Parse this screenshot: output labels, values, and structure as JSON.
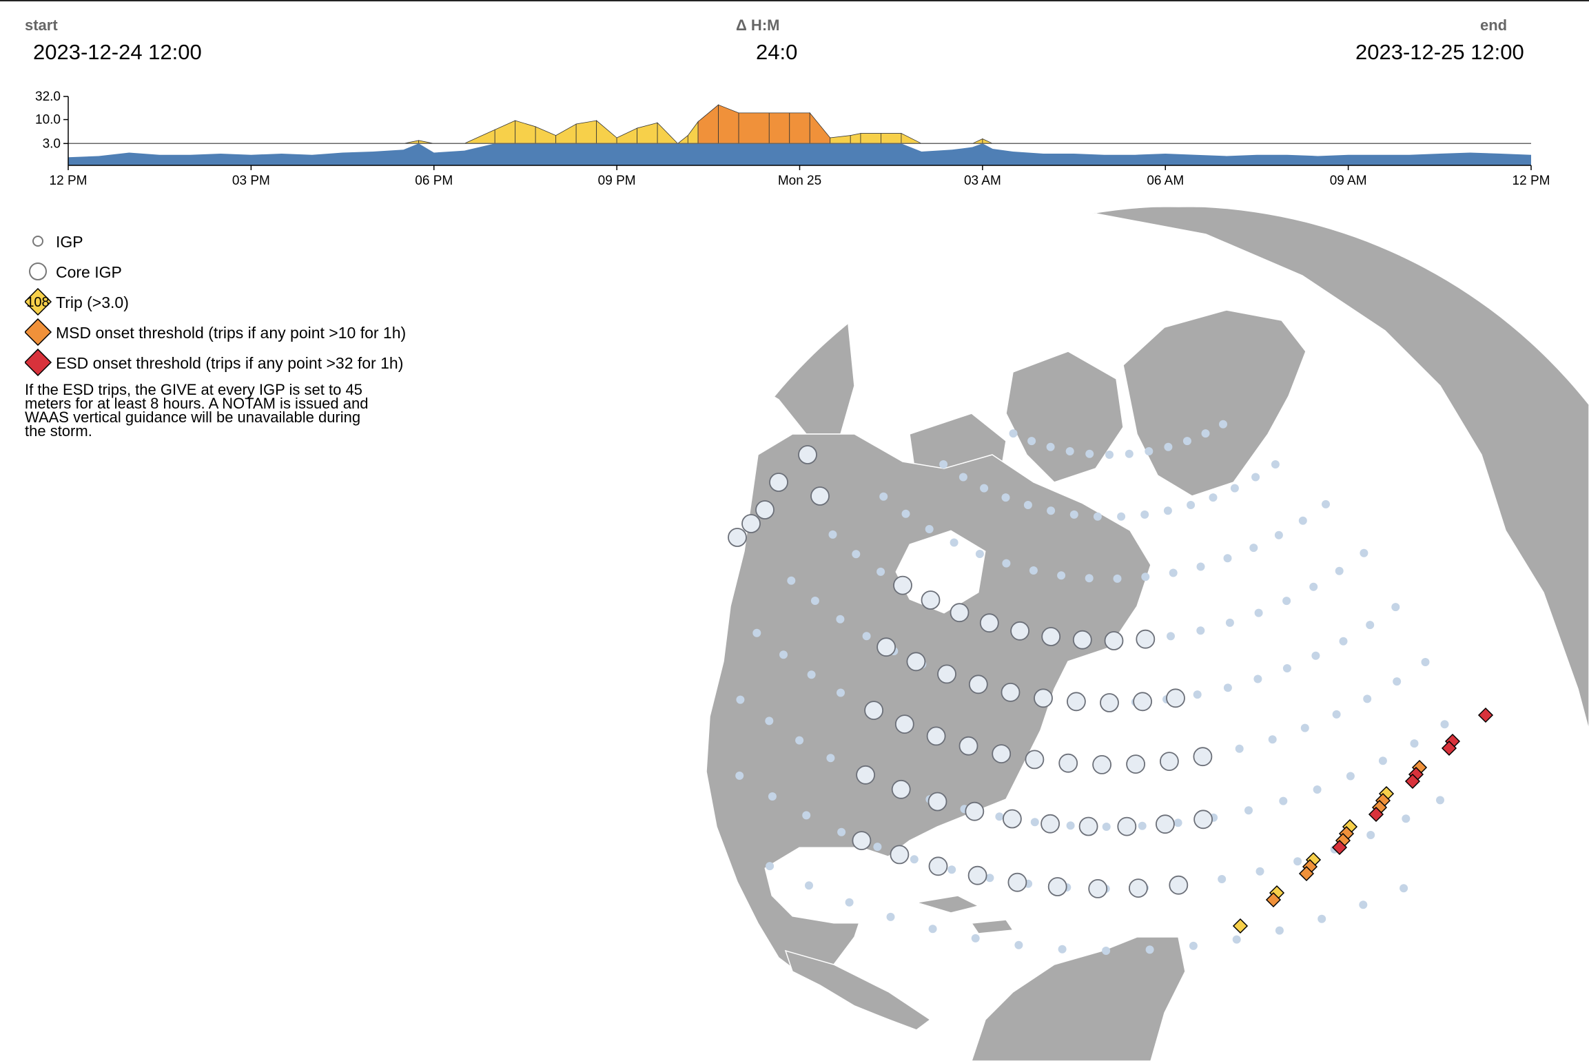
{
  "header": {
    "start_label": "start",
    "start_value": "2023-12-24 12:00",
    "delta_label": "Δ H:M",
    "delta_value": "24:0",
    "end_label": "end",
    "end_value": "2023-12-25 12:00"
  },
  "chart_data": {
    "type": "area",
    "title": "",
    "xlabel": "",
    "ylabel": "",
    "x_range": [
      "2023-12-24 12:00",
      "2023-12-25 12:00"
    ],
    "x_ticks": [
      "12 PM",
      "03 PM",
      "06 PM",
      "09 PM",
      "Mon 25",
      "03 AM",
      "06 AM",
      "09 AM",
      "12 PM"
    ],
    "y_scale": "log",
    "y_ticks": [
      "32.0",
      "10.0",
      "3.0"
    ],
    "y_ticks_values": [
      32.0,
      10.0,
      3.0
    ],
    "ylim": [
      1.0,
      32.0
    ],
    "threshold": 3.0,
    "colors": {
      "below": "#4f7fb5",
      "trip": "#f7d04a",
      "msd": "#f0913a",
      "esd": "#d8323b",
      "threshold_line": "#666666"
    },
    "series": [
      {
        "name": "",
        "x": [
          "12:00",
          "12:30",
          "13:00",
          "13:30",
          "14:00",
          "14:30",
          "15:00",
          "15:30",
          "16:00",
          "16:30",
          "17:00",
          "17:30",
          "17:45",
          "18:00",
          "18:30",
          "19:00",
          "19:20",
          "19:40",
          "20:00",
          "20:20",
          "20:40",
          "21:00",
          "21:20",
          "21:40",
          "22:00",
          "22:10",
          "22:20",
          "22:40",
          "23:00",
          "23:30",
          "23:50",
          "00:10",
          "00:30",
          "00:50",
          "01:00",
          "01:20",
          "01:40",
          "02:00",
          "02:30",
          "02:50",
          "03:00",
          "03:10",
          "03:30",
          "04:00",
          "04:30",
          "05:00",
          "05:30",
          "06:00",
          "06:30",
          "07:00",
          "07:30",
          "08:00",
          "08:30",
          "09:00",
          "09:30",
          "10:00",
          "10:30",
          "11:00",
          "11:30",
          "12:00"
        ],
        "y": [
          1.5,
          1.6,
          1.9,
          1.7,
          1.7,
          1.8,
          1.7,
          1.8,
          1.7,
          1.9,
          2.0,
          2.2,
          3.5,
          1.9,
          2.1,
          6.0,
          9.5,
          7.0,
          4.5,
          8.0,
          9.5,
          4.0,
          6.5,
          8.5,
          3.0,
          4.5,
          9.0,
          21.0,
          14.0,
          14.0,
          14.0,
          14.0,
          4.0,
          4.5,
          5.0,
          5.0,
          5.0,
          2.0,
          2.2,
          2.5,
          3.8,
          2.3,
          2.0,
          1.8,
          1.8,
          1.7,
          1.7,
          1.8,
          1.7,
          1.6,
          1.7,
          1.7,
          1.6,
          1.7,
          1.7,
          1.7,
          1.8,
          1.9,
          1.8,
          1.7
        ]
      }
    ]
  },
  "legend": {
    "igp": "IGP",
    "core_igp": "Core IGP",
    "trip_count": "108",
    "trip": "Trip (>3.0)",
    "msd": "MSD onset threshold (trips if any point >10 for 1h)",
    "esd": "ESD onset threshold (trips if any point >32 for 1h)",
    "note": "If the ESD trips, the GIVE at every IGP is set to 45 meters for at least 8 hours. A NOTAM is issued and WAAS vertical guidance will be unavailable during the storm."
  },
  "map": {
    "land_color": "#aaaaaa",
    "core_igp_fill": "#e6ecf3",
    "igp_color": "#c4d4e6",
    "trip_markers": [
      {
        "level": "trip"
      },
      {
        "level": "trip"
      },
      {
        "level": "trip"
      },
      {
        "level": "trip"
      },
      {
        "level": "trip"
      },
      {
        "level": "msd"
      },
      {
        "level": "msd"
      },
      {
        "level": "msd"
      },
      {
        "level": "msd"
      },
      {
        "level": "msd"
      },
      {
        "level": "msd"
      },
      {
        "level": "msd"
      },
      {
        "level": "msd"
      },
      {
        "level": "esd"
      },
      {
        "level": "esd"
      },
      {
        "level": "esd"
      },
      {
        "level": "esd"
      },
      {
        "level": "esd"
      },
      {
        "level": "esd"
      },
      {
        "level": "esd"
      }
    ]
  }
}
